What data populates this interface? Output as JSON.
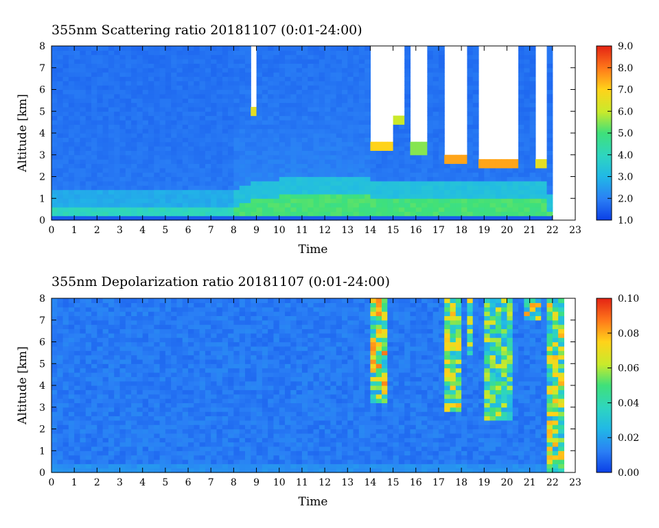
{
  "chart_data": [
    {
      "type": "heatmap",
      "title": "355nm Scattering ratio  20181107 (0:01-24:00)",
      "xlabel": "Time",
      "ylabel": "Altitude [km]",
      "xlim": [
        0,
        23
      ],
      "ylim": [
        0,
        8
      ],
      "x_ticks": [
        "0",
        "1",
        "2",
        "3",
        "4",
        "5",
        "6",
        "7",
        "8",
        "9",
        "10",
        "11",
        "12",
        "13",
        "14",
        "15",
        "16",
        "17",
        "18",
        "19",
        "20",
        "21",
        "22",
        "23"
      ],
      "y_ticks": [
        "0",
        "1",
        "2",
        "3",
        "4",
        "5",
        "6",
        "7",
        "8"
      ],
      "colorbar": {
        "range": [
          1.0,
          9.0
        ],
        "ticks": [
          "1.0",
          "2.0",
          "3.0",
          "4.0",
          "5.0",
          "6.0",
          "7.0",
          "8.0",
          "9.0"
        ]
      },
      "features": {
        "boundary_layer_top_km": [
          {
            "time": 0,
            "km": 0.5
          },
          {
            "time": 8,
            "km": 0.6
          },
          {
            "time": 9,
            "km": 1.0
          },
          {
            "time": 11,
            "km": 1.2
          },
          {
            "time": 14,
            "km": 1.1
          },
          {
            "time": 18,
            "km": 1.0
          },
          {
            "time": 21.8,
            "km": 0.9
          }
        ],
        "cloud_bases": [
          {
            "start": 8.7,
            "end": 9.0,
            "base_km": 5.0,
            "value": 6.5
          },
          {
            "start": 13.9,
            "end": 14.9,
            "base_km": 3.3,
            "value": 7.0
          },
          {
            "start": 15.0,
            "end": 15.4,
            "base_km": 4.6,
            "value": 6.0
          },
          {
            "start": 15.8,
            "end": 16.4,
            "base_km": 3.2,
            "value": 5.5
          },
          {
            "start": 17.3,
            "end": 18.2,
            "base_km": 2.7,
            "value": 7.5
          },
          {
            "start": 18.8,
            "end": 20.4,
            "base_km": 2.5,
            "value": 7.5
          },
          {
            "start": 21.2,
            "end": 21.8,
            "base_km": 2.5,
            "value": 6.5
          }
        ],
        "data_end_time": 21.9
      }
    },
    {
      "type": "heatmap",
      "title": "355nm Depolarization ratio  20181107 (0:01-24:00)",
      "xlabel": "Time",
      "ylabel": "Altitude [km]",
      "xlim": [
        0,
        23
      ],
      "ylim": [
        0,
        8
      ],
      "x_ticks": [
        "0",
        "1",
        "2",
        "3",
        "4",
        "5",
        "6",
        "7",
        "8",
        "9",
        "10",
        "11",
        "12",
        "13",
        "14",
        "15",
        "16",
        "17",
        "18",
        "19",
        "20",
        "21",
        "22",
        "23"
      ],
      "y_ticks": [
        "0",
        "1",
        "2",
        "3",
        "4",
        "5",
        "6",
        "7",
        "8"
      ],
      "colorbar": {
        "range": [
          0.0,
          0.1
        ],
        "ticks": [
          "0.00",
          "0.02",
          "0.04",
          "0.06",
          "0.08",
          "0.10"
        ]
      },
      "features": {
        "depol_columns": [
          {
            "start": 14.1,
            "end": 14.7,
            "from_km": 3.2,
            "to_km": 8.0,
            "value": 0.07
          },
          {
            "start": 17.3,
            "end": 17.9,
            "from_km": 2.8,
            "to_km": 8.0,
            "value": 0.06
          },
          {
            "start": 18.2,
            "end": 18.5,
            "from_km": 5.5,
            "to_km": 8.0,
            "value": 0.06
          },
          {
            "start": 18.9,
            "end": 20.2,
            "from_km": 2.5,
            "to_km": 8.0,
            "value": 0.05
          },
          {
            "start": 20.8,
            "end": 21.4,
            "from_km": 7.0,
            "to_km": 8.0,
            "value": 0.08
          },
          {
            "start": 21.8,
            "end": 22.6,
            "from_km": 0.0,
            "to_km": 8.0,
            "value": 0.06
          }
        ],
        "data_end_time": 22.6
      }
    }
  ]
}
